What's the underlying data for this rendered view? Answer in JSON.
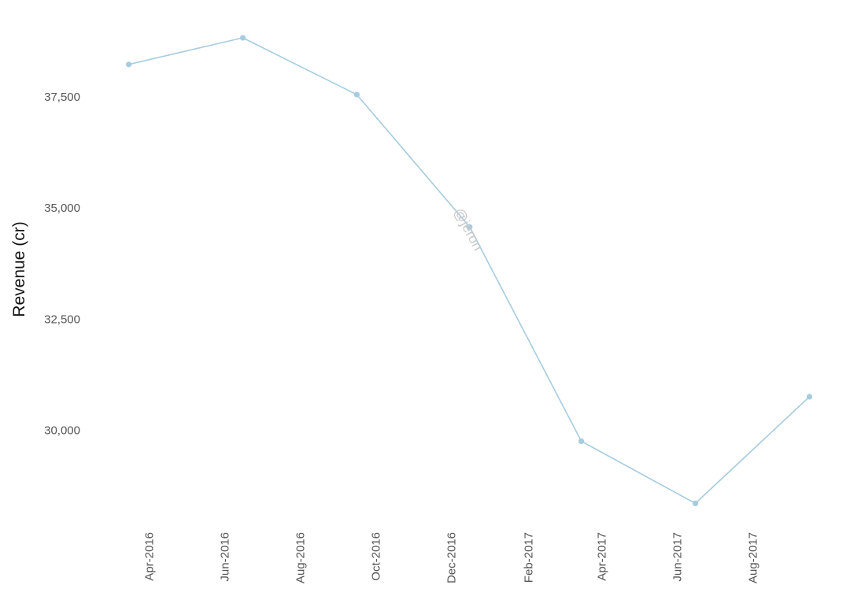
{
  "chart_data": {
    "type": "line",
    "title": "",
    "xlabel": "",
    "ylabel": "Revenue (cr)",
    "x": [
      "2016-03-15",
      "2016-06-15",
      "2016-09-15",
      "2016-12-15",
      "2017-03-15",
      "2017-06-15",
      "2017-09-15"
    ],
    "series": [
      {
        "values": [
          38250,
          38850,
          37570,
          34590,
          29770,
          28370,
          30770
        ],
        "color": "#a6cce0"
      }
    ],
    "yticks": [
      30000,
      32500,
      35000,
      37500
    ],
    "ytick_labels": [
      "30,000",
      "32,500",
      "35,000",
      "37,500"
    ],
    "xticks": [
      "2016-04-01",
      "2016-06-01",
      "2016-08-01",
      "2016-10-01",
      "2016-12-01",
      "2017-02-01",
      "2017-04-01",
      "2017-06-01",
      "2017-08-01"
    ],
    "xtick_labels": [
      "Apr-2016",
      "Jun-2016",
      "Aug-2016",
      "Oct-2016",
      "Dec-2016",
      "Feb-2017",
      "Apr-2017",
      "Jun-2017",
      "Aug-2017"
    ],
    "ylim": [
      27650,
      39700
    ],
    "xlim": [
      "2016-02-10",
      "2017-10-05"
    ],
    "grid": false,
    "legend": "none",
    "watermark": "@jeron"
  }
}
